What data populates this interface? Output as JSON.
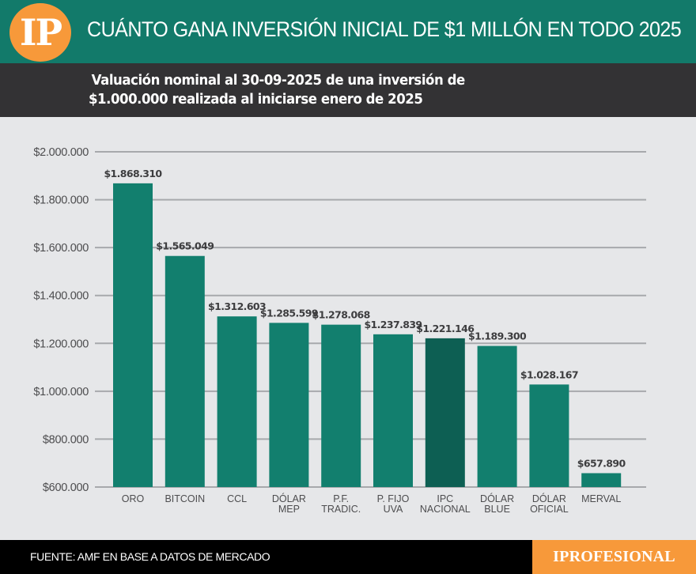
{
  "header": {
    "logo_text": "IP",
    "title": "CUÁNTO GANA INVERSIÓN INICIAL DE $1 MILLÓN EN TODO 2025"
  },
  "subtitle": {
    "line1": "Valuación nominal al 30-09-2025 de una inversión de",
    "line2": "$1.000.000 realizada al iniciarse enero de 2025"
  },
  "footer": {
    "source": "FUENTE: AMF EN BASE A DATOS DE MERCADO",
    "brand": "IPROFESIONAL"
  },
  "colors": {
    "header_bg": "#127a6a",
    "subtitle_bg": "#333234",
    "logo_orange": "#f7993a",
    "bar": "#127f6e",
    "bar_highlight": "#0d5f53",
    "chart_bg": "#e6e7e9",
    "grid": "#a7a9ac"
  },
  "chart_data": {
    "type": "bar",
    "title": "CUÁNTO GANA INVERSIÓN INICIAL DE $1 MILLÓN EN TODO 2025",
    "subtitle": "Valuación nominal al 30-09-2025 de una inversión de $1.000.000 realizada al iniciarse enero de 2025",
    "xlabel": "",
    "ylabel": "",
    "ylim": [
      600000,
      2000000
    ],
    "yticks": [
      600000,
      800000,
      1000000,
      1200000,
      1400000,
      1600000,
      1800000,
      2000000
    ],
    "ytick_labels": [
      "$600.000",
      "$800.000",
      "$1.000.000",
      "$1.200.000",
      "$1.400.000",
      "$1.600.000",
      "$1.800.000",
      "$2.000.000"
    ],
    "grid": true,
    "categories": [
      [
        "ORO"
      ],
      [
        "BITCOIN"
      ],
      [
        "CCL"
      ],
      [
        "DÓLAR",
        "MEP"
      ],
      [
        "P.F.",
        "TRADIC."
      ],
      [
        "P. FIJO",
        "UVA"
      ],
      [
        "IPC",
        "NACIONAL"
      ],
      [
        "DÓLAR",
        "BLUE"
      ],
      [
        "DÓLAR",
        "OFICIAL"
      ],
      [
        "MERVAL"
      ]
    ],
    "values": [
      1868310,
      1565049,
      1312603,
      1285599,
      1278068,
      1237839,
      1221146,
      1189300,
      1028167,
      657890
    ],
    "value_labels": [
      "$1.868.310",
      "$1.565.049",
      "$1.312.603",
      "$1.285.599",
      "$1.278.068",
      "$1.237.839",
      "$1.221.146",
      "$1.189.300",
      "$1.028.167",
      "$657.890"
    ],
    "highlight_index": 6,
    "legend": "none"
  }
}
